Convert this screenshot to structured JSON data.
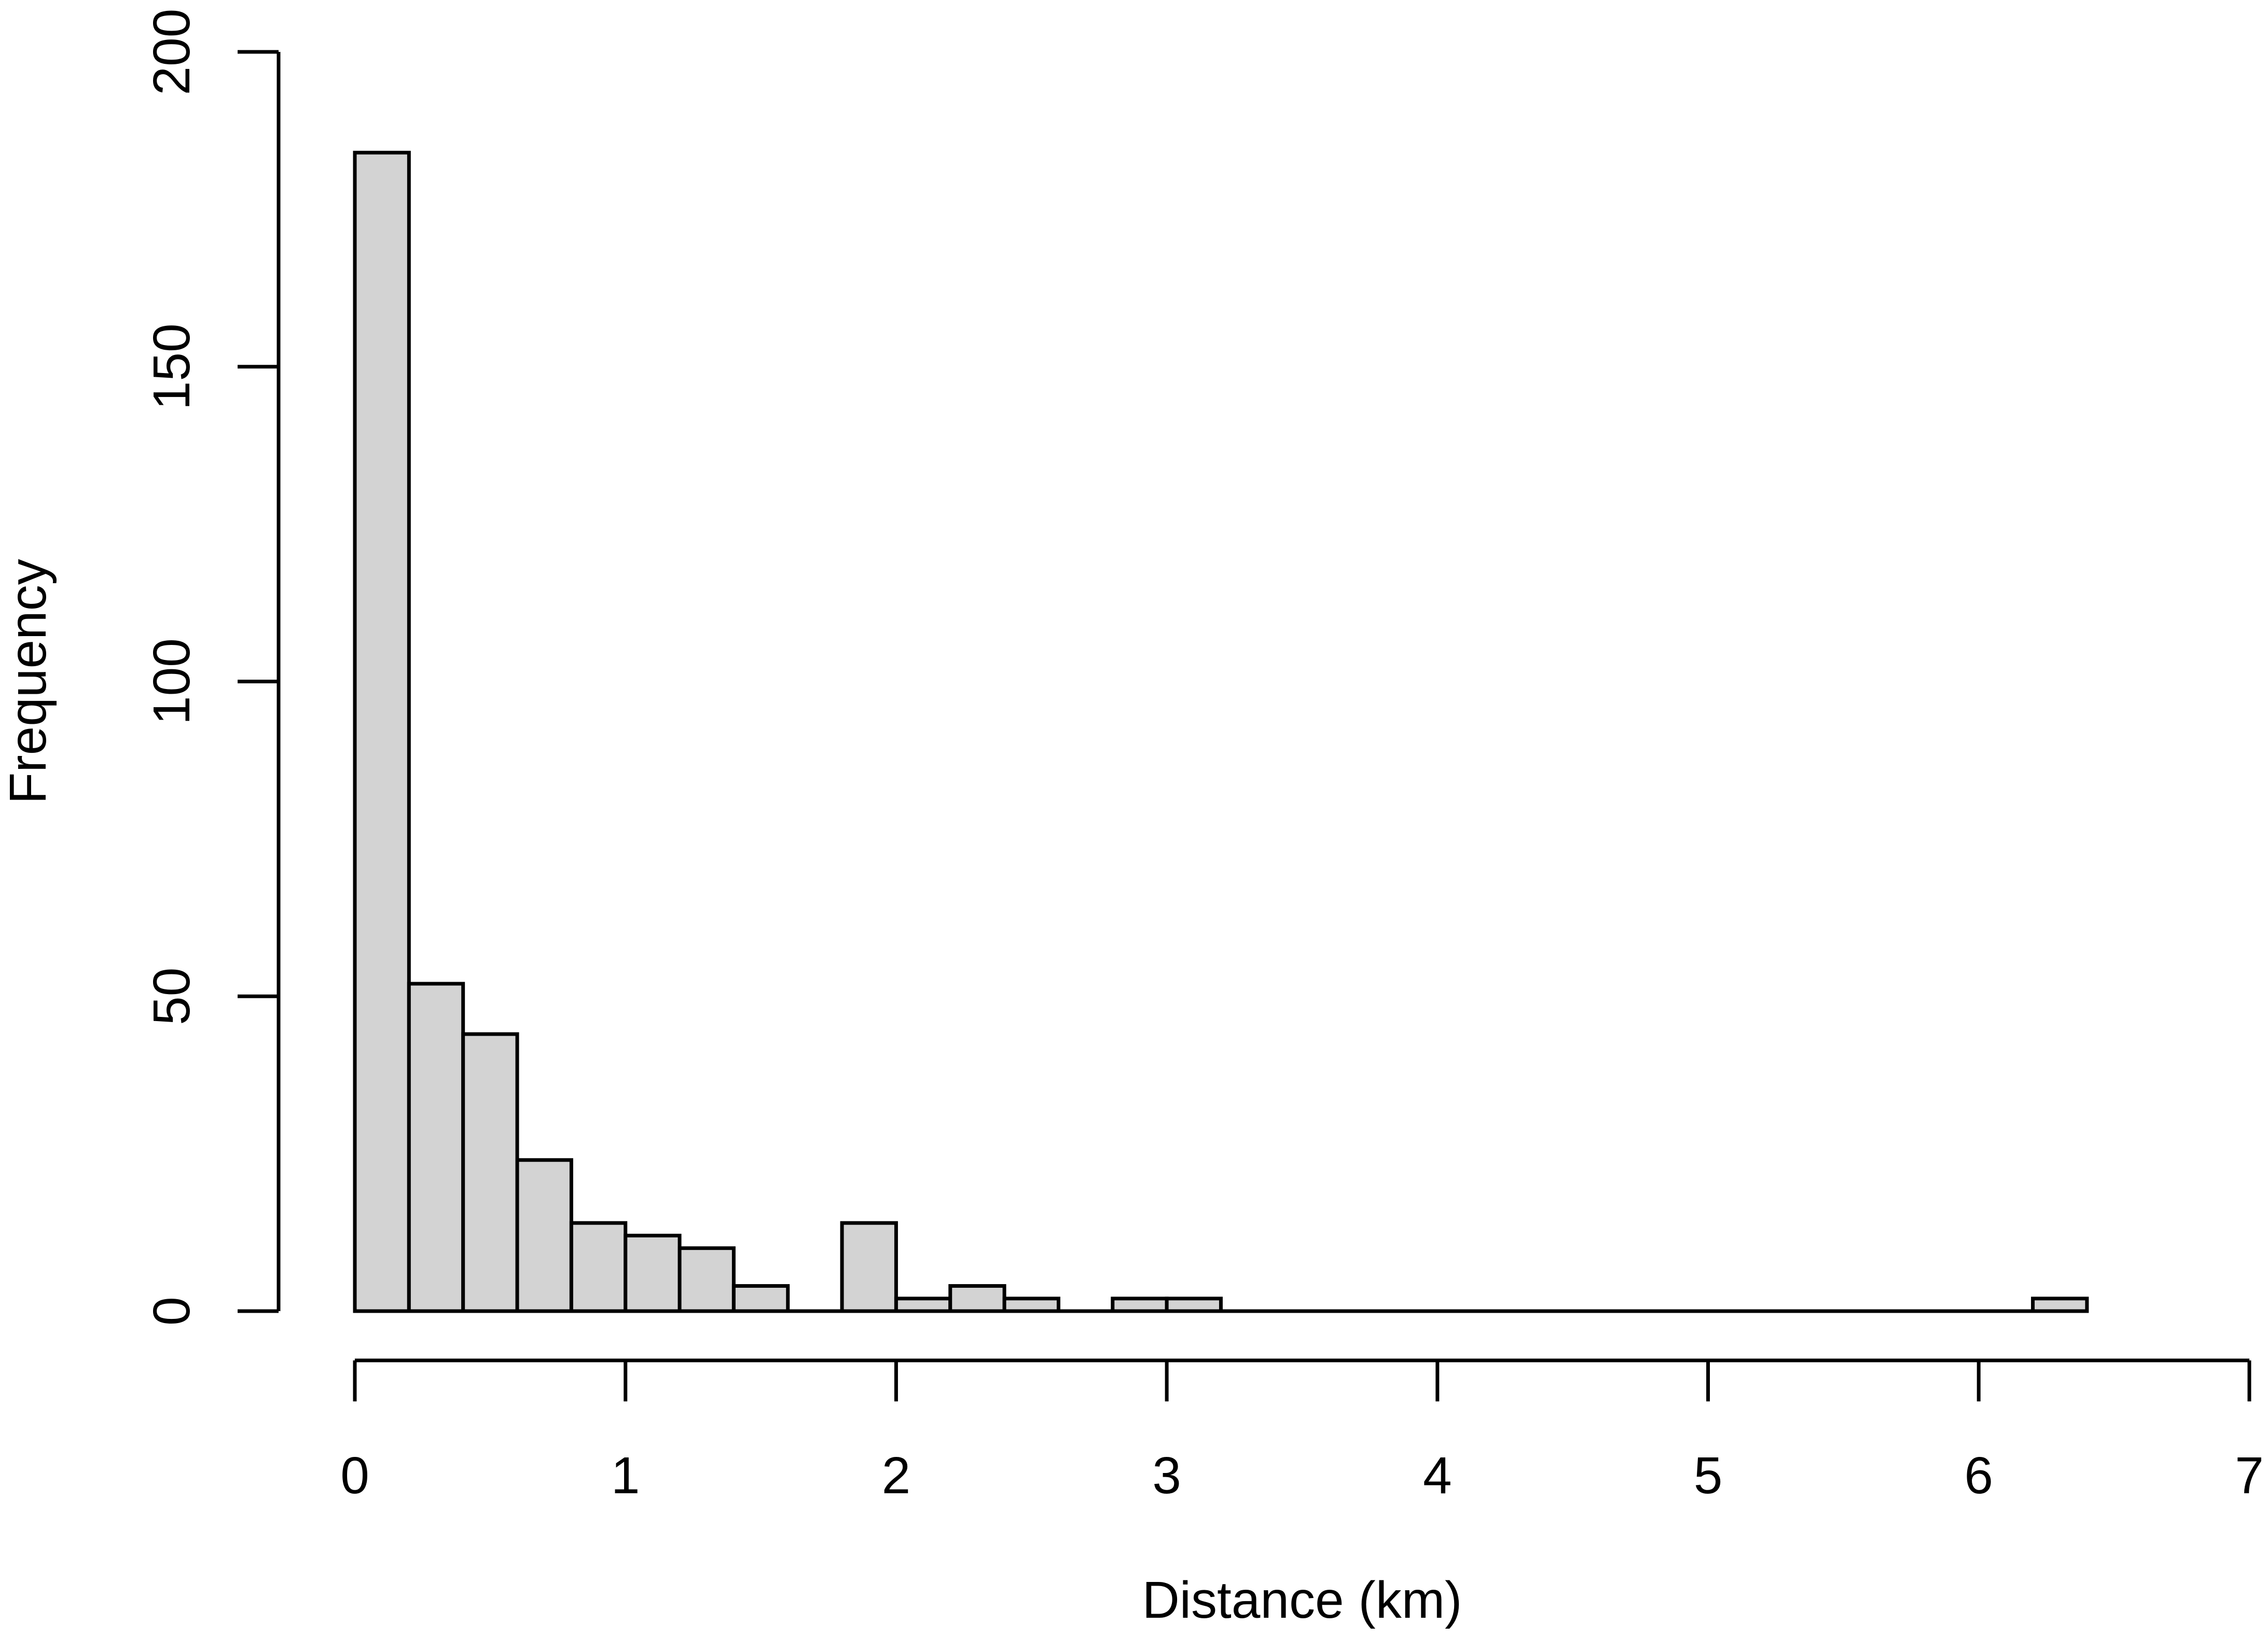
{
  "chart_data": {
    "type": "bar",
    "subtype": "histogram",
    "title": "",
    "xlabel": "Distance (km)",
    "ylabel": "Frequency",
    "xlim": [
      0,
      7
    ],
    "ylim": [
      0,
      200
    ],
    "x_ticks": [
      0,
      1,
      2,
      3,
      4,
      5,
      6,
      7
    ],
    "y_ticks": [
      0,
      50,
      100,
      150,
      200
    ],
    "bin_width": 0.2,
    "bins": [
      {
        "start": 0.0,
        "end": 0.2,
        "count": 184
      },
      {
        "start": 0.2,
        "end": 0.4,
        "count": 52
      },
      {
        "start": 0.4,
        "end": 0.6,
        "count": 44
      },
      {
        "start": 0.6,
        "end": 0.8,
        "count": 24
      },
      {
        "start": 0.8,
        "end": 1.0,
        "count": 14
      },
      {
        "start": 1.0,
        "end": 1.2,
        "count": 12
      },
      {
        "start": 1.2,
        "end": 1.4,
        "count": 10
      },
      {
        "start": 1.4,
        "end": 1.6,
        "count": 4
      },
      {
        "start": 1.6,
        "end": 1.8,
        "count": 0
      },
      {
        "start": 1.8,
        "end": 2.0,
        "count": 14
      },
      {
        "start": 2.0,
        "end": 2.2,
        "count": 2
      },
      {
        "start": 2.2,
        "end": 2.4,
        "count": 4
      },
      {
        "start": 2.4,
        "end": 2.6,
        "count": 2
      },
      {
        "start": 2.6,
        "end": 2.8,
        "count": 0
      },
      {
        "start": 2.8,
        "end": 3.0,
        "count": 2
      },
      {
        "start": 3.0,
        "end": 3.2,
        "count": 2
      },
      {
        "start": 3.2,
        "end": 3.4,
        "count": 0
      },
      {
        "start": 3.4,
        "end": 3.6,
        "count": 0
      },
      {
        "start": 3.6,
        "end": 3.8,
        "count": 0
      },
      {
        "start": 3.8,
        "end": 4.0,
        "count": 0
      },
      {
        "start": 4.0,
        "end": 4.2,
        "count": 0
      },
      {
        "start": 4.2,
        "end": 4.4,
        "count": 0
      },
      {
        "start": 4.4,
        "end": 4.6,
        "count": 0
      },
      {
        "start": 4.6,
        "end": 4.8,
        "count": 0
      },
      {
        "start": 4.8,
        "end": 5.0,
        "count": 0
      },
      {
        "start": 5.0,
        "end": 5.2,
        "count": 0
      },
      {
        "start": 5.2,
        "end": 5.4,
        "count": 0
      },
      {
        "start": 5.4,
        "end": 5.6,
        "count": 0
      },
      {
        "start": 5.6,
        "end": 5.8,
        "count": 0
      },
      {
        "start": 5.8,
        "end": 6.0,
        "count": 0
      },
      {
        "start": 6.0,
        "end": 6.2,
        "count": 0
      },
      {
        "start": 6.2,
        "end": 6.4,
        "count": 2
      }
    ],
    "grid": false,
    "legend": "none",
    "colors": {
      "bar_fill": "#d3d3d3",
      "bar_stroke": "#000000",
      "axis": "#000000",
      "background": "#ffffff"
    }
  }
}
